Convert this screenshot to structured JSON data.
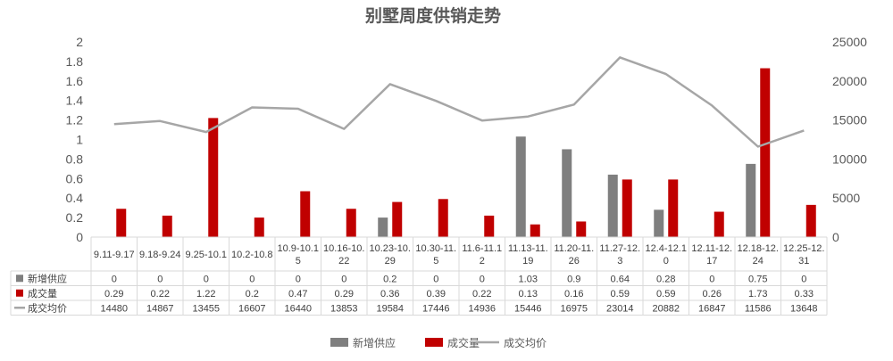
{
  "chart_data": {
    "type": "bar",
    "title": "别墅周度供销走势",
    "categories": [
      [
        "9.11-9.17"
      ],
      [
        "9.18-9.24"
      ],
      [
        "9.25-10.1"
      ],
      [
        "10.2-10.8"
      ],
      [
        "10.9-10.1",
        "5"
      ],
      [
        "10.16-10.",
        "22"
      ],
      [
        "10.23-10.",
        "29"
      ],
      [
        "10.30-11.",
        "5"
      ],
      [
        "11.6-11.1",
        "2"
      ],
      [
        "11.13-11.",
        "19"
      ],
      [
        "11.20-11.",
        "26"
      ],
      [
        "11.27-12.",
        "3"
      ],
      [
        "12.4-12.1",
        "0"
      ],
      [
        "12.11-12.",
        "17"
      ],
      [
        "12.18-12.",
        "24"
      ],
      [
        "12.25-12.",
        "31"
      ]
    ],
    "series": [
      {
        "name": "新增供应",
        "color": "#7f7f7f",
        "kind": "bar",
        "axis": "left",
        "values": [
          0,
          0,
          0,
          0,
          0,
          0,
          0.2,
          0,
          0,
          1.03,
          0.9,
          0.64,
          0.28,
          0,
          0.75,
          0
        ],
        "labels": [
          "0",
          "0",
          "0",
          "0",
          "0",
          "0",
          "0.2",
          "0",
          "0",
          "1.03",
          "0.9",
          "0.64",
          "0.28",
          "0",
          "0.75",
          "0"
        ]
      },
      {
        "name": "成交量",
        "color": "#c00000",
        "kind": "bar",
        "axis": "left",
        "values": [
          0.29,
          0.22,
          1.22,
          0.2,
          0.47,
          0.29,
          0.36,
          0.39,
          0.22,
          0.13,
          0.16,
          0.59,
          0.59,
          0.26,
          1.73,
          0.33
        ],
        "labels": [
          "0.29",
          "0.22",
          "1.22",
          "0.2",
          "0.47",
          "0.29",
          "0.36",
          "0.39",
          "0.22",
          "0.13",
          "0.16",
          "0.59",
          "0.59",
          "0.26",
          "1.73",
          "0.33"
        ]
      },
      {
        "name": "成交均价",
        "color": "#a6a6a6",
        "kind": "line",
        "axis": "right",
        "values": [
          14480,
          14867,
          13455,
          16607,
          16440,
          13853,
          19584,
          17446,
          14936,
          15446,
          16975,
          23014,
          20882,
          16847,
          11586,
          13648
        ],
        "labels": [
          "14480",
          "14867",
          "13455",
          "16607",
          "16440",
          "13853",
          "19584",
          "17446",
          "14936",
          "15446",
          "16975",
          "23014",
          "20882",
          "16847",
          "11586",
          "13648"
        ]
      }
    ],
    "y_left": {
      "min": 0,
      "max": 2,
      "ticks": [
        "0",
        "0.2",
        "0.4",
        "0.6",
        "0.8",
        "1",
        "1.2",
        "1.4",
        "1.6",
        "1.8",
        "2"
      ]
    },
    "y_right": {
      "min": 0,
      "max": 25000,
      "ticks": [
        "0",
        "5000",
        "10000",
        "15000",
        "20000",
        "25000"
      ]
    },
    "grid": false,
    "legend": "bottom",
    "data_table": true
  }
}
